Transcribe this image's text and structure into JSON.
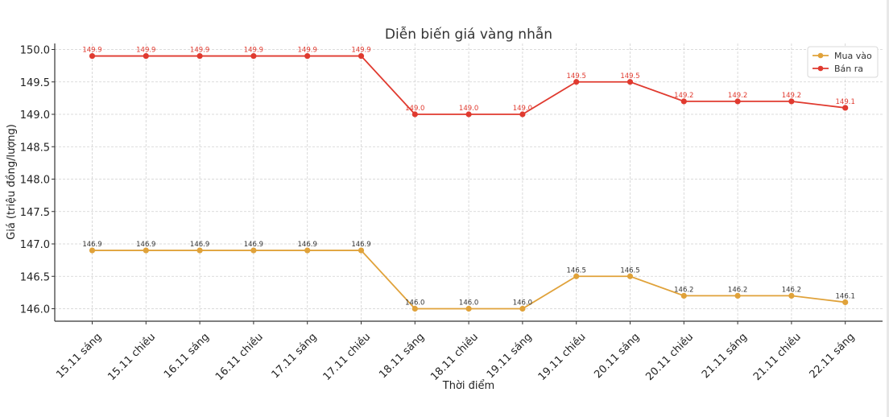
{
  "chart_data": {
    "type": "line",
    "title": "Diễn biến giá vàng nhẫn",
    "xlabel": "Thời điểm",
    "ylabel": "Giá (triệu đồng/lượng)",
    "ylim": [
      145.8,
      150.1
    ],
    "yticks": [
      "146.0",
      "146.5",
      "147.0",
      "147.5",
      "148.0",
      "148.5",
      "149.0",
      "149.5",
      "150.0"
    ],
    "grid": true,
    "legend_position": "upper right",
    "categories": [
      "15.11 sáng",
      "15.11 chiều",
      "16.11 sáng",
      "16.11 chiều",
      "17.11 sáng",
      "17.11 chiều",
      "18.11 sáng",
      "18.11 chiều",
      "19.11 sáng",
      "19.11 chiều",
      "20.11 sáng",
      "20.11 chiều",
      "21.11 sáng",
      "21.11 chiều",
      "22.11 sáng"
    ],
    "series": [
      {
        "name": "Mua vào",
        "color": "#e0a23a",
        "label_color": "#333333",
        "values": [
          146.9,
          146.9,
          146.9,
          146.9,
          146.9,
          146.9,
          146.0,
          146.0,
          146.0,
          146.5,
          146.5,
          146.2,
          146.2,
          146.2,
          146.1
        ]
      },
      {
        "name": "Bán ra",
        "color": "#e03a2f",
        "label_color": "#e03a2f",
        "values": [
          149.9,
          149.9,
          149.9,
          149.9,
          149.9,
          149.9,
          149.0,
          149.0,
          149.0,
          149.5,
          149.5,
          149.2,
          149.2,
          149.2,
          149.1
        ]
      }
    ]
  }
}
